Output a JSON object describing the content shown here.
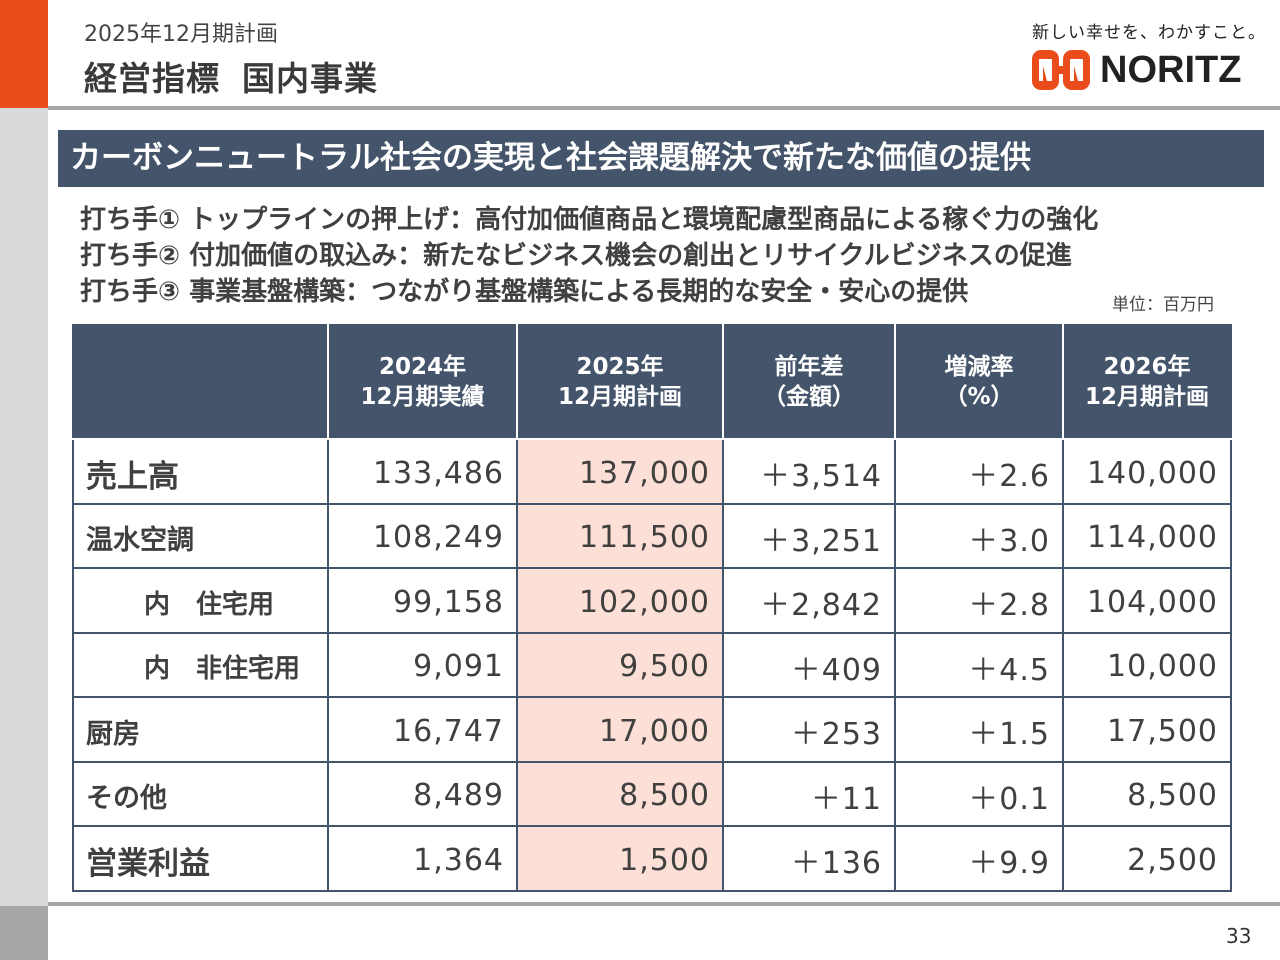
{
  "header": {
    "subtitle": "2025年12月期計画",
    "title_part1": "経営指標",
    "title_part2": "国内事業"
  },
  "brand": {
    "tagline": "新しい幸せを、わかすこと。",
    "logo_text": "NORITZ",
    "logo_color": "#ea4d1b"
  },
  "banner": {
    "text": "カーボンニュートラル社会の実現と社会課題解決で新たな価値の提供"
  },
  "measures": [
    "打ち手① トップラインの押上げ：高付加価値商品と環境配慮型商品による稼ぐ力の強化",
    "打ち手② 付加価値の取込み：新たなビジネス機会の創出とリサイクルビジネスの促進",
    "打ち手③ 事業基盤構築：つながり基盤構築による長期的な安全・安心の提供"
  ],
  "unit_note": "単位：百万円",
  "table": {
    "headers": [
      {
        "line1": "",
        "line2": ""
      },
      {
        "line1": "2024年",
        "line2": "12月期実績"
      },
      {
        "line1": "2025年",
        "line2": "12月期計画"
      },
      {
        "line1": "前年差",
        "line2": "（金額）"
      },
      {
        "line1": "増減率",
        "line2": "（%）"
      },
      {
        "line1": "2026年",
        "line2": "12月期計画"
      }
    ],
    "rows": [
      {
        "label": "売上高",
        "v2024": "133,486",
        "v2025": "137,000",
        "diff": "＋3,514",
        "rate": "＋2.6",
        "v2026": "140,000"
      },
      {
        "label": "温水空調",
        "v2024": "108,249",
        "v2025": "111,500",
        "diff": "＋3,251",
        "rate": "＋3.0",
        "v2026": "114,000"
      },
      {
        "label": "内　住宅用",
        "v2024": "99,158",
        "v2025": "102,000",
        "diff": "＋2,842",
        "rate": "＋2.8",
        "v2026": "104,000"
      },
      {
        "label": "内　非住宅用",
        "v2024": "9,091",
        "v2025": "9,500",
        "diff": "＋409",
        "rate": "＋4.5",
        "v2026": "10,000"
      },
      {
        "label": "厨房",
        "v2024": "16,747",
        "v2025": "17,000",
        "diff": "＋253",
        "rate": "＋1.5",
        "v2026": "17,500"
      },
      {
        "label": "その他",
        "v2024": "8,489",
        "v2025": "8,500",
        "diff": "＋11",
        "rate": "＋0.1",
        "v2026": "8,500"
      },
      {
        "label": "営業利益",
        "v2024": "1,364",
        "v2025": "1,500",
        "diff": "＋136",
        "rate": "＋9.9",
        "v2026": "2,500"
      }
    ]
  },
  "page_number": "33",
  "colors": {
    "accent": "#ea4d1b",
    "navy": "#44546a",
    "highlight": "#fcdfd6",
    "gray_bar": "#d9d9d9"
  }
}
